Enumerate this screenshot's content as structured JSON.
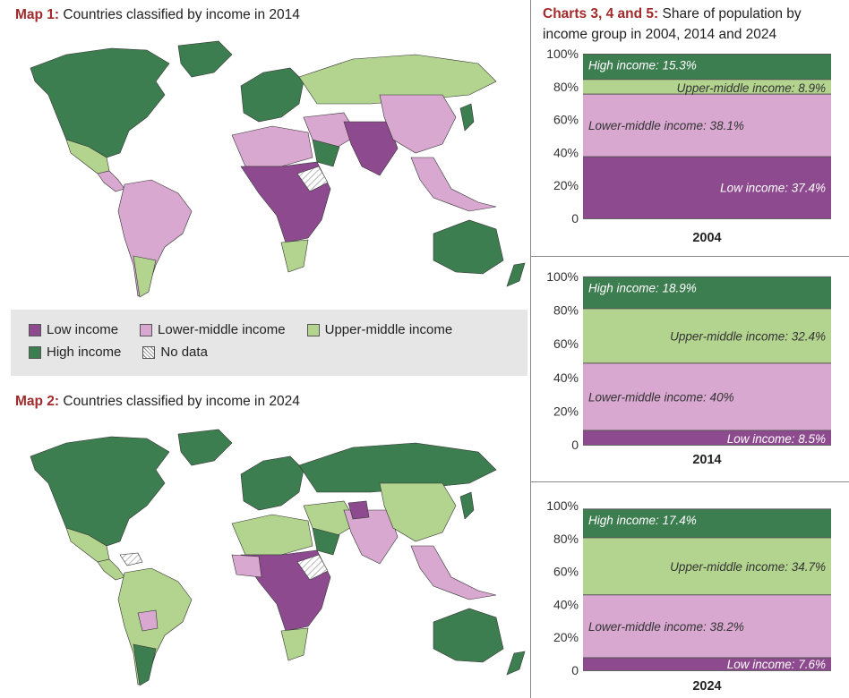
{
  "map1": {
    "lead": "Map 1:",
    "title": "Countries classified by income in 2014"
  },
  "map2": {
    "lead": "Map 2:",
    "title": "Countries classified by income in 2024"
  },
  "legend": {
    "items": [
      {
        "label": "Low income",
        "color": "#8e4a8e"
      },
      {
        "label": "Lower-middle income",
        "color": "#d8a8d0"
      },
      {
        "label": "Upper-middle income",
        "color": "#b3d48e"
      },
      {
        "label": "High income",
        "color": "#3d7e50"
      },
      {
        "label": "No data",
        "color": "hatched"
      }
    ]
  },
  "charts_title": {
    "lead": "Charts 3, 4 and 5:",
    "title": "Share of population by income group in 2004, 2014 and 2024"
  },
  "chart_data": [
    {
      "type": "bar",
      "stacked": true,
      "categories": [
        "2004"
      ],
      "yticks": [
        "100%",
        "80%",
        "60%",
        "40%",
        "20%",
        "0"
      ],
      "ylim": [
        0,
        100
      ],
      "series": [
        {
          "name": "Low income",
          "label": "Low income: 37.4%",
          "values": [
            37.4
          ]
        },
        {
          "name": "Lower-middle income",
          "label": "Lower-middle income: 38.1%",
          "values": [
            38.1
          ]
        },
        {
          "name": "Upper-middle income",
          "label": "Upper-middle income: 8.9%",
          "values": [
            8.9
          ]
        },
        {
          "name": "High income",
          "label": "High income: 15.3%",
          "values": [
            15.3
          ]
        }
      ]
    },
    {
      "type": "bar",
      "stacked": true,
      "categories": [
        "2014"
      ],
      "yticks": [
        "100%",
        "80%",
        "60%",
        "40%",
        "20%",
        "0"
      ],
      "ylim": [
        0,
        100
      ],
      "series": [
        {
          "name": "Low income",
          "label": "Low income: 8.5%",
          "values": [
            8.5
          ]
        },
        {
          "name": "Lower-middle income",
          "label": "Lower-middle income: 40%",
          "values": [
            40
          ]
        },
        {
          "name": "Upper-middle income",
          "label": "Upper-middle income: 32.4%",
          "values": [
            32.4
          ]
        },
        {
          "name": "High income",
          "label": "High income: 18.9%",
          "values": [
            18.9
          ]
        }
      ]
    },
    {
      "type": "bar",
      "stacked": true,
      "categories": [
        "2024"
      ],
      "yticks": [
        "100%",
        "80%",
        "60%",
        "40%",
        "20%",
        "0"
      ],
      "ylim": [
        0,
        100
      ],
      "series": [
        {
          "name": "Low income",
          "label": "Low income: 7.6%",
          "values": [
            7.6
          ]
        },
        {
          "name": "Lower-middle income",
          "label": "Lower-middle income: 38.2%",
          "values": [
            38.2
          ]
        },
        {
          "name": "Upper-middle income",
          "label": "Upper-middle income: 34.7%",
          "values": [
            34.7
          ]
        },
        {
          "name": "High income",
          "label": "High income: 17.4%",
          "values": [
            17.4
          ]
        }
      ]
    }
  ]
}
